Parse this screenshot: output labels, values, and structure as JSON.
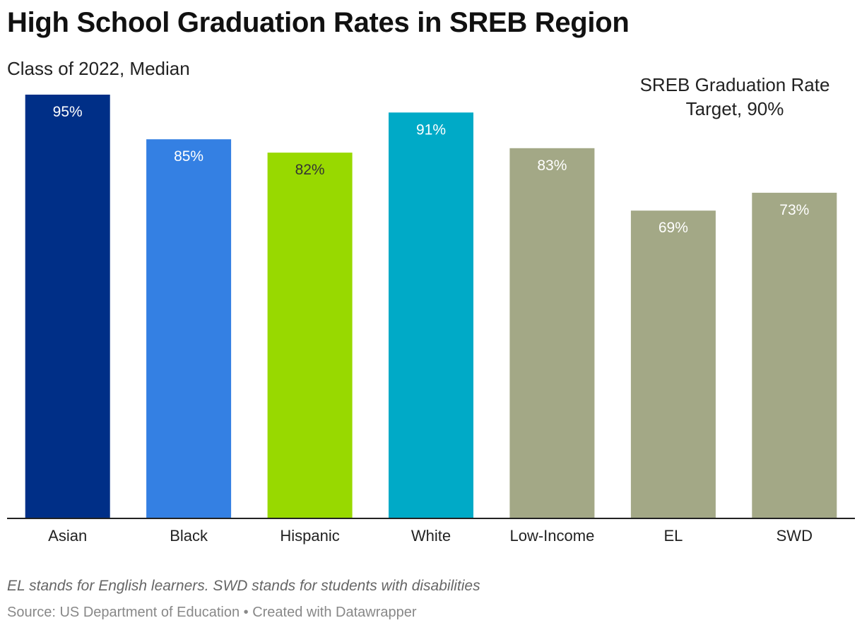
{
  "title": "High School Graduation Rates in SREB Region",
  "subtitle": "Class of 2022, Median",
  "annotation": {
    "line1": "SREB Graduation Rate",
    "line2": "Target, 90%"
  },
  "footer": {
    "note": "EL stands for English learners. SWD stands for students with disabilities",
    "source_prefix": "Source: US Department of Education",
    "separator": " • ",
    "created_with": "Created with Datawrapper"
  },
  "chart_data": {
    "type": "bar",
    "title": "High School Graduation Rates in SREB Region",
    "subtitle": "Class of 2022, Median",
    "categories": [
      "Asian",
      "Black",
      "Hispanic",
      "White",
      "Low-Income",
      "EL",
      "SWD"
    ],
    "values": [
      95,
      85,
      82,
      91,
      83,
      69,
      73
    ],
    "labels": [
      "95%",
      "85%",
      "82%",
      "91%",
      "83%",
      "69%",
      "73%"
    ],
    "colors": [
      "#002f87",
      "#3480e3",
      "#98d900",
      "#00aac7",
      "#a3a886",
      "#a3a886",
      "#a3a886"
    ],
    "label_colors": [
      "#ffffff",
      "#ffffff",
      "#333333",
      "#ffffff",
      "#ffffff",
      "#ffffff",
      "#ffffff"
    ],
    "ylim": [
      0,
      95
    ],
    "target": 90,
    "target_label": "SREB Graduation Rate Target, 90%",
    "xlabel": "",
    "ylabel": "",
    "grid": false
  }
}
